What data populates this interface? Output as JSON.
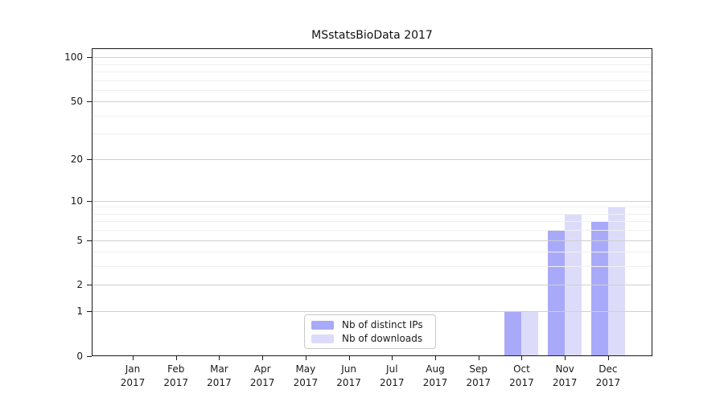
{
  "chart_data": {
    "type": "bar",
    "title": "MSstatsBioData 2017",
    "categories": [
      "Jan",
      "Feb",
      "Mar",
      "Apr",
      "May",
      "Jun",
      "Jul",
      "Aug",
      "Sep",
      "Oct",
      "Nov",
      "Dec"
    ],
    "year": "2017",
    "series": [
      {
        "name": "Nb of distinct IPs",
        "color": "#a9a9fa",
        "values": [
          0,
          0,
          0,
          0,
          0,
          0,
          0,
          0,
          0,
          1,
          6,
          7
        ]
      },
      {
        "name": "Nb of downloads",
        "color": "#dcdcfa",
        "values": [
          0,
          0,
          0,
          0,
          0,
          0,
          0,
          0,
          0,
          1,
          8,
          9
        ]
      }
    ],
    "xlabel": "",
    "ylabel": "",
    "yscale": "log10(value+1)",
    "ytick_values": [
      0,
      1,
      2,
      5,
      10,
      20,
      50,
      100
    ],
    "minor_grid_values": [
      3,
      4,
      6,
      7,
      8,
      9,
      30,
      40,
      60,
      70,
      80,
      90
    ],
    "ylim": [
      0,
      115
    ],
    "grid": "horizontal",
    "legend_position": "bottom-center-inside",
    "colors": {
      "major_grid": "#d0d0d0",
      "minor_grid": "#f0f0f0",
      "axis": "#1a1a1a",
      "text": "#1a1a1a"
    }
  }
}
